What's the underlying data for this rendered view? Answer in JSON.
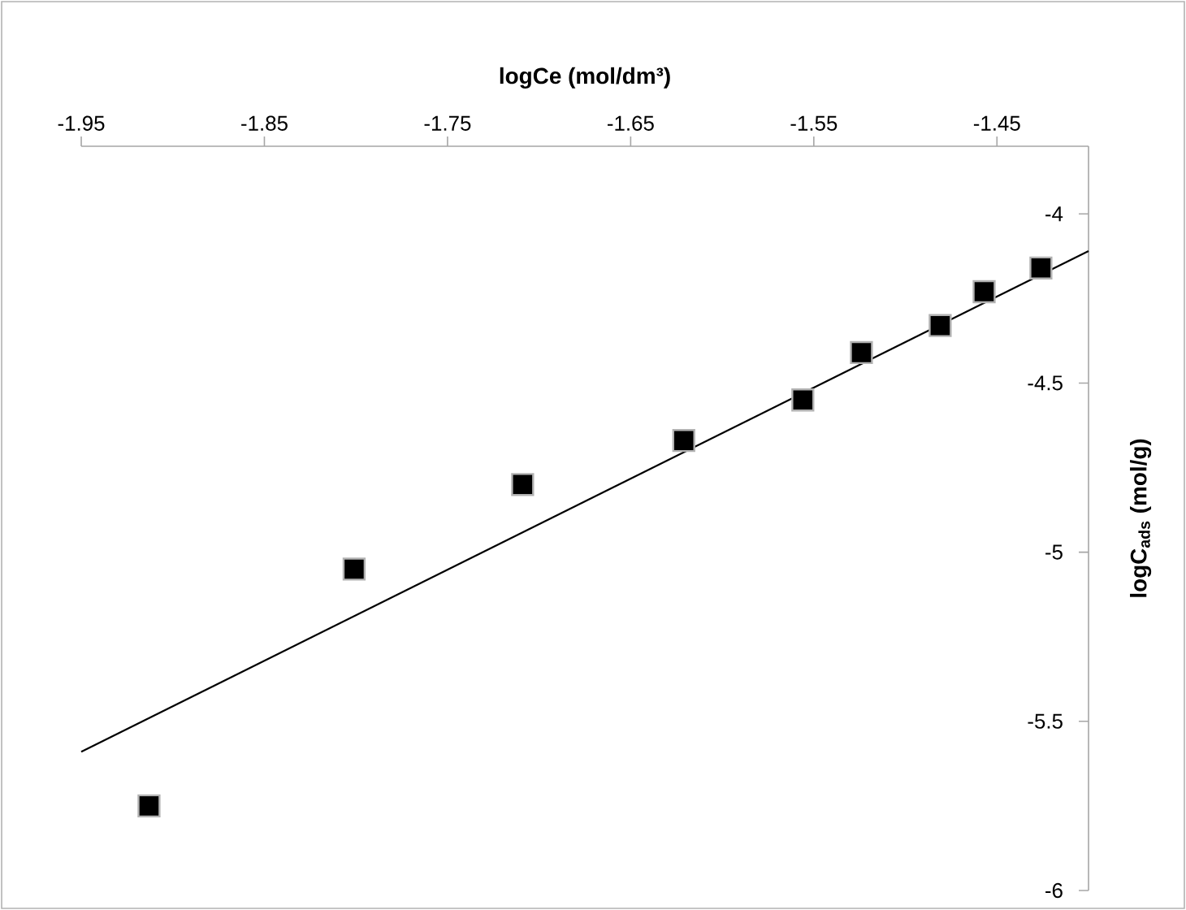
{
  "chart_data": {
    "type": "scatter",
    "xlabel": "logCe (mol/dm³)",
    "ylabel": "logC$_{ads}$ (mol/g)",
    "xlim": [
      -1.95,
      -1.4
    ],
    "ylim": [
      -6,
      -3.8
    ],
    "xticks": [
      -1.95,
      -1.85,
      -1.75,
      -1.65,
      -1.55,
      -1.45
    ],
    "yticks": [
      -6,
      -5.5,
      -5,
      -4.5,
      -4
    ],
    "series": [
      {
        "type": "scatter",
        "marker": "square",
        "color": "#000000",
        "x": [
          -1.913,
          -1.801,
          -1.709,
          -1.621,
          -1.556,
          -1.524,
          -1.481,
          -1.457,
          -1.426
        ],
        "values": [
          -5.75,
          -5.05,
          -4.8,
          -4.67,
          -4.55,
          -4.41,
          -4.33,
          -4.23,
          -4.16
        ]
      },
      {
        "type": "line",
        "marker": "none",
        "line_style": "solid",
        "color": "#000000",
        "x": [
          -1.95,
          -1.4
        ],
        "values": [
          -5.59,
          -4.11
        ]
      }
    ]
  }
}
